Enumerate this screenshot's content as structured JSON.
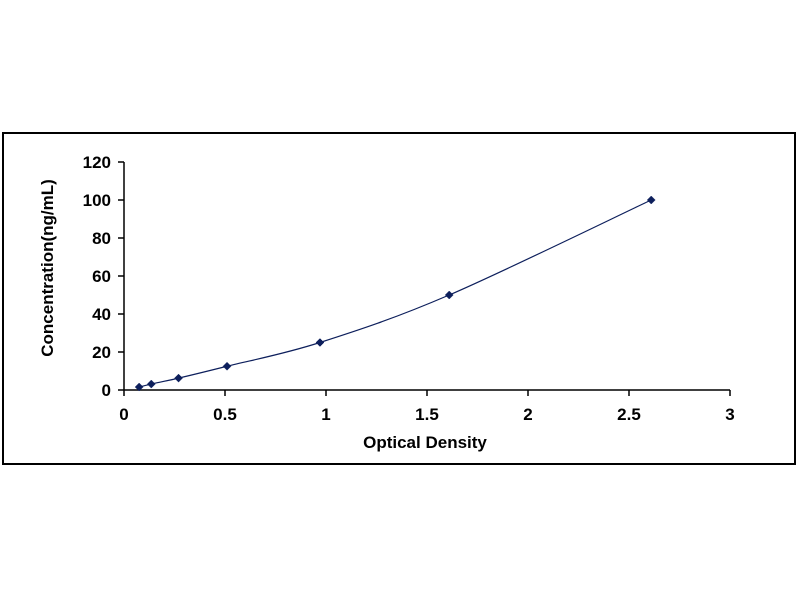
{
  "chart_data": {
    "type": "scatter",
    "title": "",
    "xlabel": "Optical Density",
    "ylabel": "Concentration(ng/mL)",
    "xlim": [
      0,
      3
    ],
    "ylim": [
      0,
      120
    ],
    "x_ticks": [
      "0",
      "0.5",
      "1",
      "1.5",
      "2",
      "2.5",
      "3"
    ],
    "y_ticks": [
      "0",
      "20",
      "40",
      "60",
      "80",
      "100",
      "120"
    ],
    "grid": false,
    "legend": "none",
    "series": [
      {
        "points": [
          {
            "x": 0.075,
            "y": 1.56
          },
          {
            "x": 0.135,
            "y": 3.13
          },
          {
            "x": 0.27,
            "y": 6.25
          },
          {
            "x": 0.51,
            "y": 12.5
          },
          {
            "x": 0.97,
            "y": 25
          },
          {
            "x": 1.61,
            "y": 50
          },
          {
            "x": 2.61,
            "y": 100
          }
        ],
        "fit_curve": true
      }
    ],
    "colors": {
      "marker": "#0d1f5c",
      "curve": "#0d1f5c",
      "axis": "#000000"
    }
  }
}
